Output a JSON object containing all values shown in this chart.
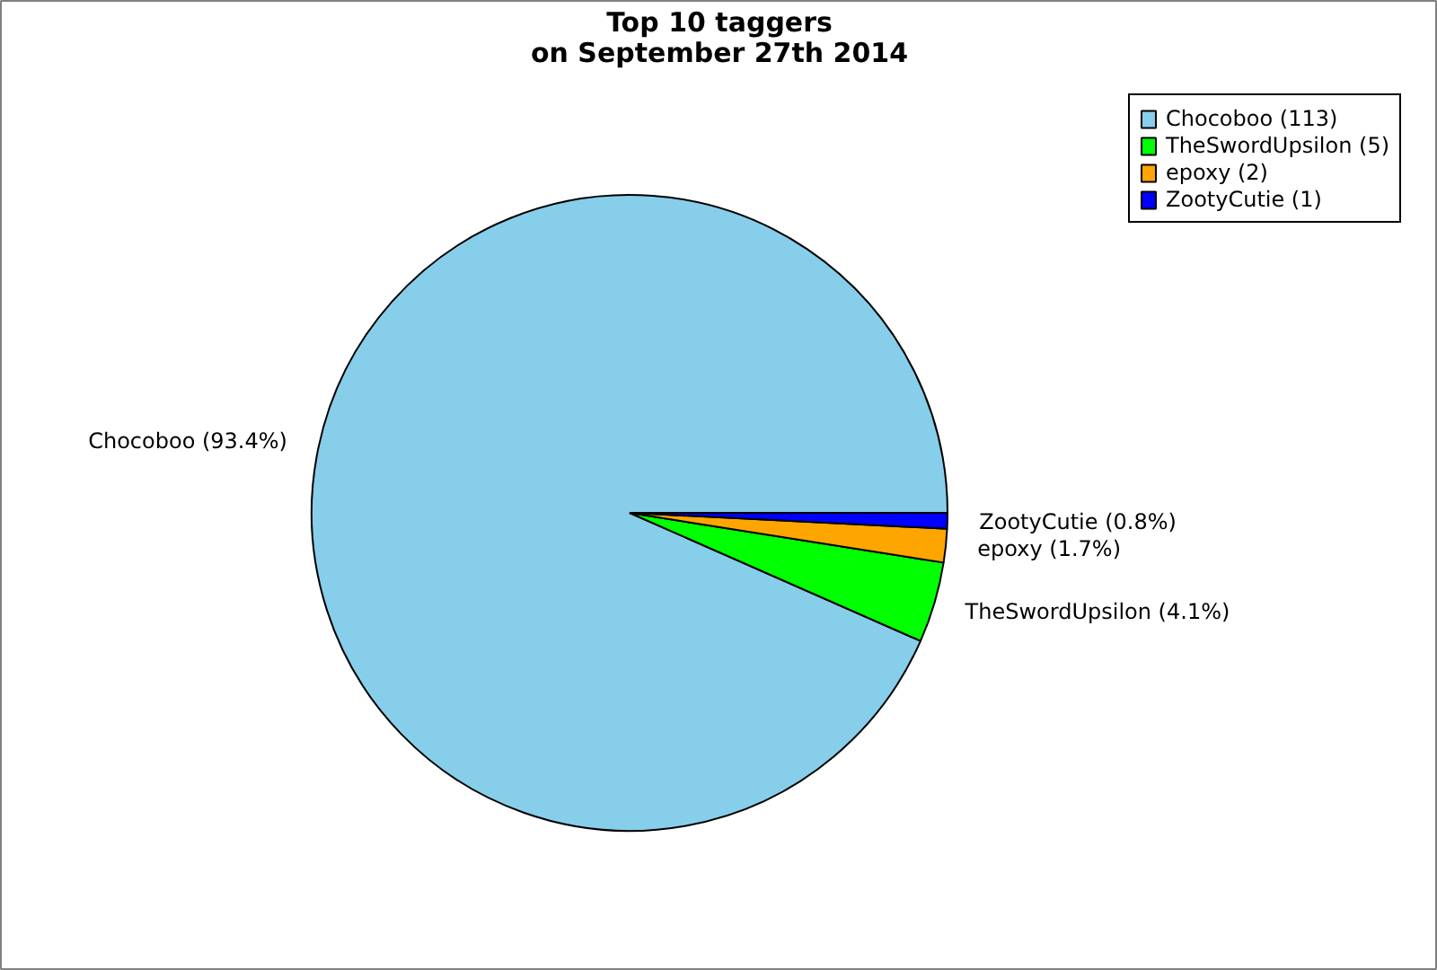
{
  "chart_data": {
    "type": "pie",
    "title": "Top 10 taggers\non September 27th 2014",
    "categories": [
      "Chocoboo (113)",
      "TheSwordUpsilon (5)",
      "epoxy (2)",
      "ZootyCutie (1)"
    ],
    "values": [
      93.4,
      4.1,
      1.7,
      0.8
    ],
    "colors": [
      "#87ceeb",
      "#00ff00",
      "#ffa500",
      "#0000ff"
    ],
    "value_labels": [
      "Chocoboo (93.4%)",
      "TheSwordUpsilon (4.1%)",
      "epoxy (1.7%)",
      "ZootyCutie (0.8%)"
    ],
    "legend": "top right"
  }
}
